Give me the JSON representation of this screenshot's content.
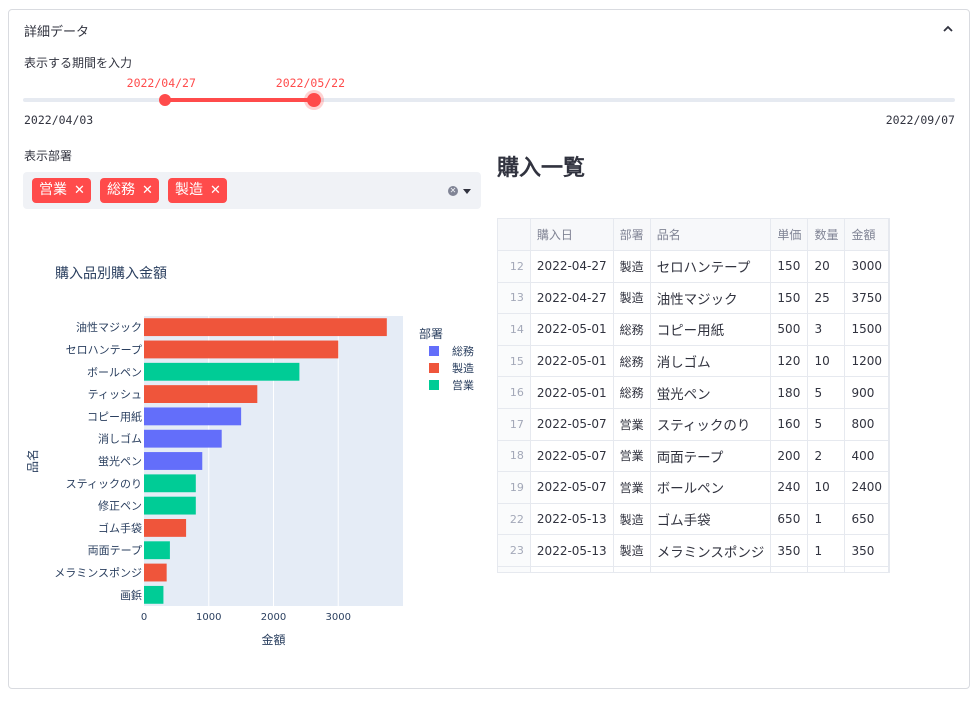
{
  "expander": {
    "title": "詳細データ",
    "chevron_icon": "chevron-up-icon"
  },
  "period": {
    "label": "表示する期間を入力",
    "min": "2022/04/03",
    "max": "2022/09/07",
    "start": "2022/04/27",
    "end": "2022/05/22",
    "start_fraction": 0.152,
    "end_fraction": 0.312
  },
  "department": {
    "label": "表示部署",
    "selected": [
      "営業",
      "総務",
      "製造"
    ],
    "remove_icon": "close-icon",
    "clear_icon": "clear-all-icon",
    "dropdown_icon": "caret-down-icon"
  },
  "accent_color": "#ff4b4b",
  "chart_data": {
    "type": "bar",
    "orientation": "horizontal",
    "title": "購入品別購入金額",
    "xlabel": "金額",
    "ylabel": "品名",
    "xlim": [
      0,
      4000
    ],
    "xticks": [
      "0",
      "1000",
      "2000",
      "3000"
    ],
    "legend_title": "部署",
    "legend_position": "right",
    "legend": [
      {
        "name": "総務",
        "color": "#636efa"
      },
      {
        "name": "製造",
        "color": "#ef553b"
      },
      {
        "name": "営業",
        "color": "#00cc96"
      }
    ],
    "bars": [
      {
        "category": "油性マジック",
        "value": 3750,
        "dept": "製造"
      },
      {
        "category": "セロハンテープ",
        "value": 3000,
        "dept": "製造"
      },
      {
        "category": "ボールペン",
        "value": 2400,
        "dept": "営業"
      },
      {
        "category": "ティッシュ",
        "value": 1750,
        "dept": "製造"
      },
      {
        "category": "コピー用紙",
        "value": 1500,
        "dept": "総務"
      },
      {
        "category": "消しゴム",
        "value": 1200,
        "dept": "総務"
      },
      {
        "category": "蛍光ペン",
        "value": 900,
        "dept": "総務"
      },
      {
        "category": "スティックのり",
        "value": 800,
        "dept": "営業"
      },
      {
        "category": "修正ペン",
        "value": 800,
        "dept": "営業"
      },
      {
        "category": "ゴム手袋",
        "value": 650,
        "dept": "製造"
      },
      {
        "category": "両面テープ",
        "value": 400,
        "dept": "営業"
      },
      {
        "category": "メラミンスポンジ",
        "value": 350,
        "dept": "製造"
      },
      {
        "category": "画鋲",
        "value": 300,
        "dept": "営業"
      }
    ]
  },
  "table": {
    "title": "購入一覧",
    "columns": [
      "",
      "購入日",
      "部署",
      "品名",
      "単価",
      "数量",
      "金額"
    ],
    "rows": [
      [
        "12",
        "2022-04-27",
        "製造",
        "セロハンテープ",
        "150",
        "20",
        "3000"
      ],
      [
        "13",
        "2022-04-27",
        "製造",
        "油性マジック",
        "150",
        "25",
        "3750"
      ],
      [
        "14",
        "2022-05-01",
        "総務",
        "コピー用紙",
        "500",
        "3",
        "1500"
      ],
      [
        "15",
        "2022-05-01",
        "総務",
        "消しゴム",
        "120",
        "10",
        "1200"
      ],
      [
        "16",
        "2022-05-01",
        "総務",
        "蛍光ペン",
        "180",
        "5",
        "900"
      ],
      [
        "17",
        "2022-05-07",
        "営業",
        "スティックのり",
        "160",
        "5",
        "800"
      ],
      [
        "18",
        "2022-05-07",
        "営業",
        "両面テープ",
        "200",
        "2",
        "400"
      ],
      [
        "19",
        "2022-05-07",
        "営業",
        "ボールペン",
        "240",
        "10",
        "2400"
      ],
      [
        "22",
        "2022-05-13",
        "製造",
        "ゴム手袋",
        "650",
        "1",
        "650"
      ],
      [
        "23",
        "2022-05-13",
        "製造",
        "メラミンスポンジ",
        "350",
        "1",
        "350"
      ]
    ]
  }
}
